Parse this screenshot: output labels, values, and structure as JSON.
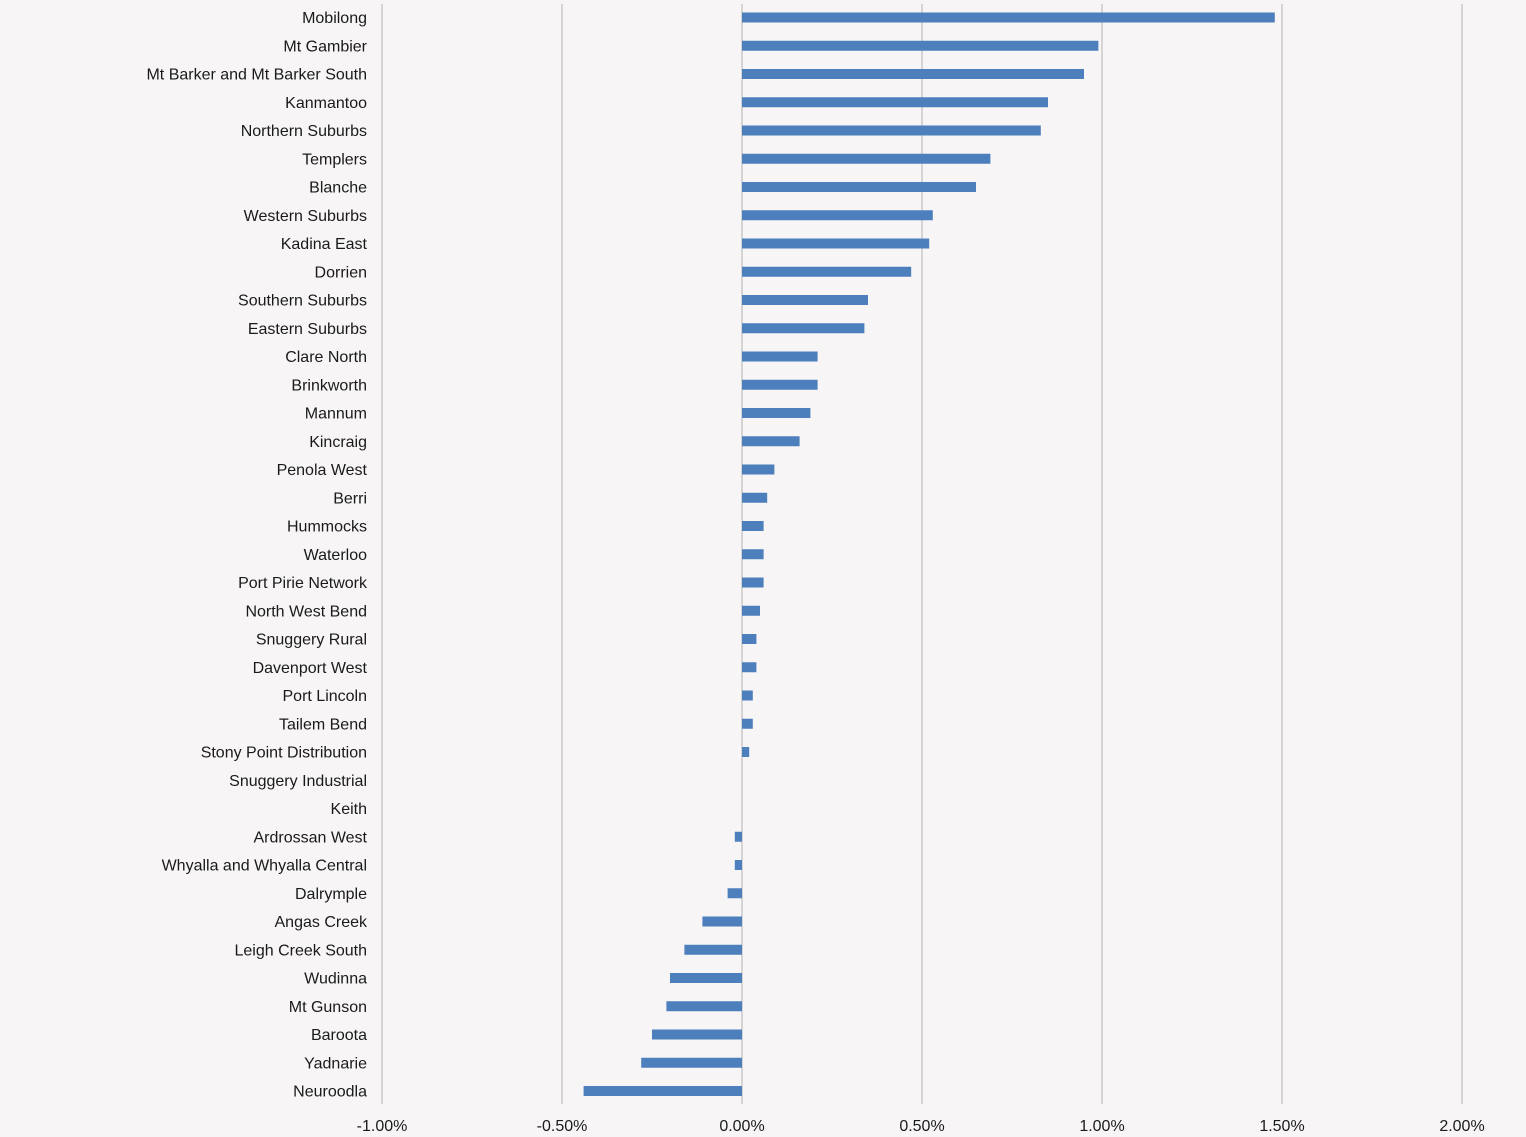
{
  "chart_data": {
    "type": "bar",
    "orientation": "horizontal",
    "title": "",
    "xlabel": "",
    "ylabel": "",
    "xlim": [
      -0.01,
      0.02
    ],
    "ticks": [
      -0.01,
      -0.005,
      0,
      0.005,
      0.01,
      0.015,
      0.02
    ],
    "tick_labels": [
      "-1.00%",
      "-0.50%",
      "0.00%",
      "0.50%",
      "1.00%",
      "1.50%",
      "2.00%"
    ],
    "grid": true,
    "legend": "none",
    "bar_color": "#4e7fbd",
    "categories": [
      "Mobilong",
      "Mt Gambier",
      "Mt Barker and Mt Barker South",
      "Kanmantoo",
      "Northern Suburbs",
      "Templers",
      "Blanche",
      "Western Suburbs",
      "Kadina East",
      "Dorrien",
      "Southern Suburbs",
      "Eastern Suburbs",
      "Clare North",
      "Brinkworth",
      "Mannum",
      "Kincraig",
      "Penola West",
      "Berri",
      "Hummocks",
      "Waterloo",
      "Port Pirie Network",
      "North West Bend",
      "Snuggery Rural",
      "Davenport West",
      "Port Lincoln",
      "Tailem Bend",
      "Stony Point Distribution",
      "Snuggery Industrial",
      "Keith",
      "Ardrossan West",
      "Whyalla and Whyalla Central",
      "Dalrymple",
      "Angas Creek",
      "Leigh Creek South",
      "Wudinna",
      "Mt Gunson",
      "Baroota",
      "Yadnarie",
      "Neuroodla"
    ],
    "values": [
      0.0148,
      0.0099,
      0.0095,
      0.0085,
      0.0083,
      0.0069,
      0.0065,
      0.0053,
      0.0052,
      0.0047,
      0.0035,
      0.0034,
      0.0021,
      0.0021,
      0.0019,
      0.0016,
      0.0009,
      0.0007,
      0.0006,
      0.0006,
      0.0006,
      0.0005,
      0.0004,
      0.0004,
      0.0003,
      0.0003,
      0.0002,
      0.0,
      0.0,
      -0.0002,
      -0.0002,
      -0.0004,
      -0.0011,
      -0.0016,
      -0.002,
      -0.0021,
      -0.0025,
      -0.0028,
      -0.0044
    ]
  }
}
